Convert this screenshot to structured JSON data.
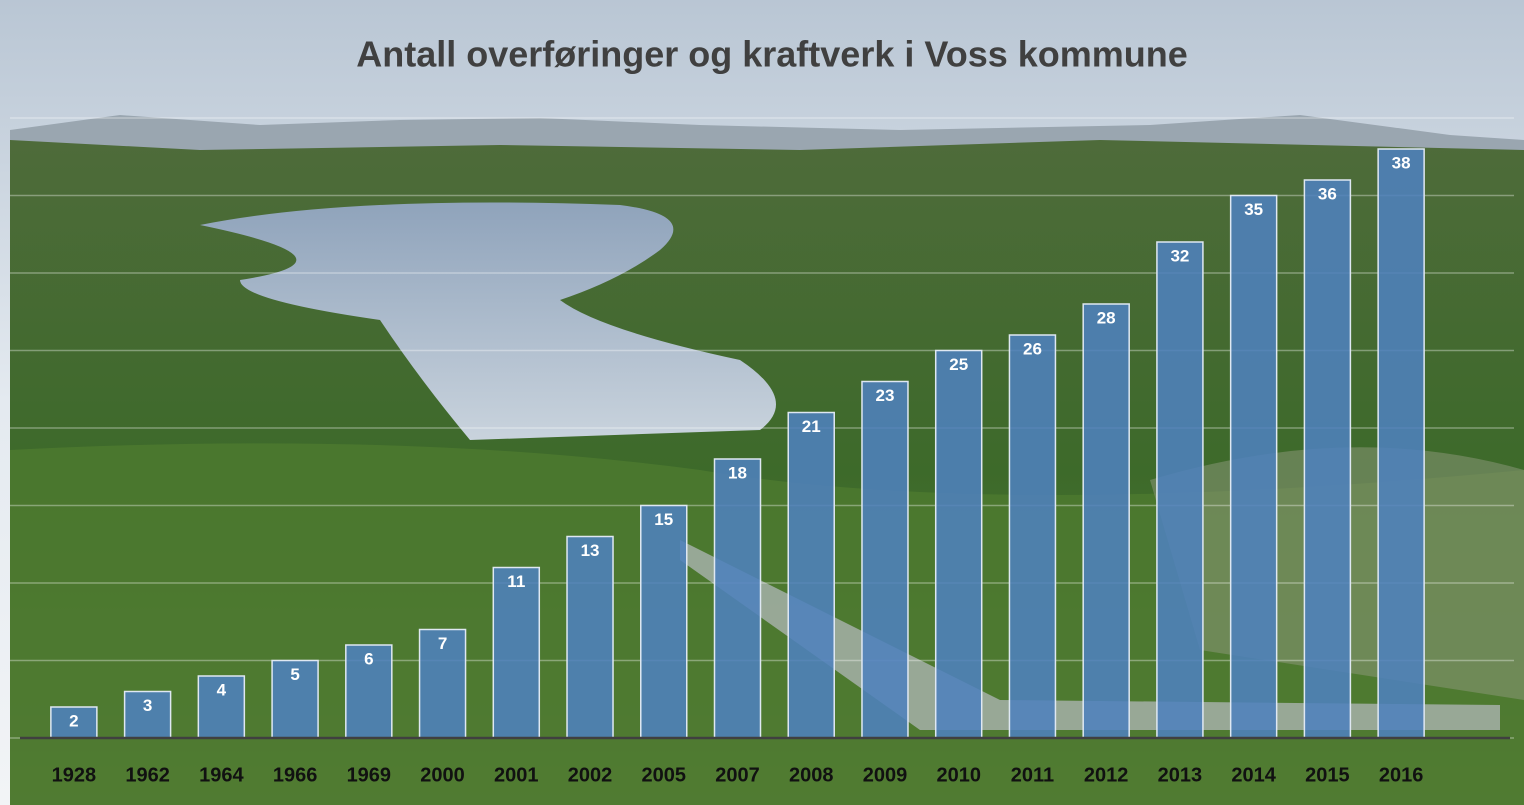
{
  "chart_data": {
    "type": "bar",
    "title": "Antall overføringer og kraftverk i Voss kommune",
    "categories": [
      "1928",
      "1962",
      "1964",
      "1966",
      "1969",
      "2000",
      "2001",
      "2002",
      "2005",
      "2007",
      "2008",
      "2009",
      "2010",
      "2011",
      "2012",
      "2013",
      "2014",
      "2015",
      "2016"
    ],
    "values": [
      2,
      3,
      4,
      5,
      6,
      7,
      11,
      13,
      15,
      18,
      21,
      23,
      25,
      26,
      28,
      32,
      35,
      36,
      38
    ],
    "color": "#4f81bd",
    "ylim": [
      0,
      40
    ],
    "yticks": [
      0,
      5,
      10,
      15,
      20,
      25,
      30,
      35,
      40
    ],
    "grid": true
  }
}
